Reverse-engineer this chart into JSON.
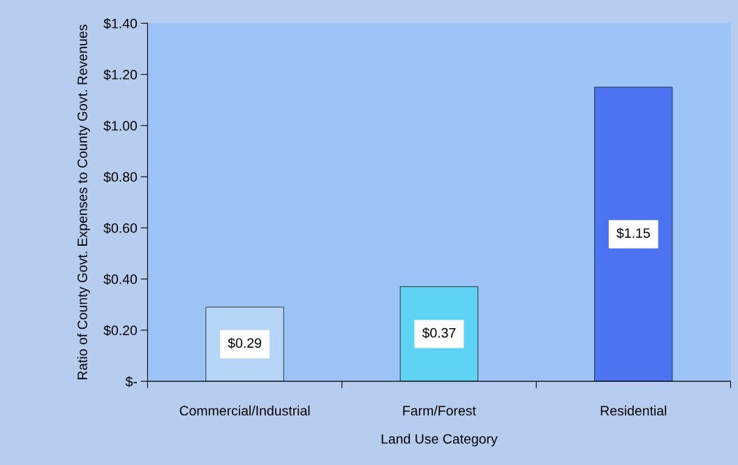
{
  "chart_data": {
    "type": "bar",
    "xlabel": "Land Use Category",
    "ylabel": "Ratio of County Govt. Expenses to County Govt. Revenues",
    "categories": [
      "Commercial/Industrial",
      "Farm/Forest",
      "Residential"
    ],
    "values": [
      0.29,
      0.37,
      1.15
    ],
    "colors": [
      "#b5d6f7",
      "#5fd3f3",
      "#4b73f2"
    ],
    "value_labels": [
      "$0.29",
      "$0.37",
      "$1.15"
    ],
    "ylim": [
      0,
      1.4
    ],
    "yticks": [
      {
        "value": 0,
        "label": "$-"
      },
      {
        "value": 0.2,
        "label": "$0.20"
      },
      {
        "value": 0.4,
        "label": "$0.40"
      },
      {
        "value": 0.6,
        "label": "$0.60"
      },
      {
        "value": 0.8,
        "label": "$0.80"
      },
      {
        "value": 1.0,
        "label": "$1.00"
      },
      {
        "value": 1.2,
        "label": "$1.20"
      },
      {
        "value": 1.4,
        "label": "$1.40"
      }
    ],
    "grid": false,
    "legend": false
  }
}
